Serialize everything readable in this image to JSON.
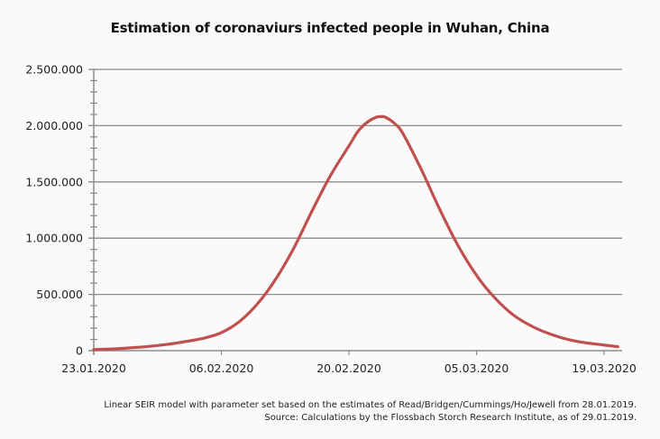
{
  "chart_data": {
    "type": "line",
    "title": "Estimation of coronaviurs infected people in Wuhan, China",
    "xlabel": "",
    "ylabel": "",
    "ylim": [
      0,
      2500000
    ],
    "yticks": [
      {
        "value": 0,
        "label": "0"
      },
      {
        "value": 500000,
        "label": "500.000"
      },
      {
        "value": 1000000,
        "label": "1.000.000"
      },
      {
        "value": 1500000,
        "label": "1.500.000"
      },
      {
        "value": 2000000,
        "label": "2.000.000"
      },
      {
        "value": 2500000,
        "label": "2.500.000"
      }
    ],
    "y_minor_step": 100000,
    "xlim_days": [
      0,
      58
    ],
    "xticks": [
      {
        "day": 0,
        "label": "23.01.2020"
      },
      {
        "day": 14,
        "label": "06.02.2020"
      },
      {
        "day": 28,
        "label": "20.02.2020"
      },
      {
        "day": 42,
        "label": "05.03.2020"
      },
      {
        "day": 56,
        "label": "19.03.2020"
      }
    ],
    "grid": "horizontal",
    "legend": "none",
    "series": [
      {
        "name": "Infected people",
        "color": "#c0504d",
        "x_days": [
          0,
          2,
          4,
          6,
          8,
          10,
          12,
          14,
          16,
          18,
          20,
          22,
          24,
          26,
          28,
          29,
          30,
          31,
          31.5,
          32,
          33,
          34,
          36,
          38,
          40,
          42,
          44,
          46,
          48,
          50,
          52,
          54,
          56,
          57.5
        ],
        "values": [
          10000,
          15000,
          25000,
          38000,
          55000,
          80000,
          110000,
          160000,
          260000,
          420000,
          640000,
          920000,
          1250000,
          1560000,
          1820000,
          1950000,
          2030000,
          2075000,
          2080000,
          2075000,
          2020000,
          1920000,
          1600000,
          1250000,
          930000,
          670000,
          470000,
          320000,
          220000,
          150000,
          100000,
          70000,
          50000,
          35000
        ]
      }
    ],
    "footnotes": [
      "Linear SEIR model with parameter set based on the estimates of Read/Bridgen/Cummings/Ho/Jewell from 28.01.2019.",
      "Source: Calculations by the Flossbach Storch Research Institute, as of 29.01.2019."
    ]
  }
}
